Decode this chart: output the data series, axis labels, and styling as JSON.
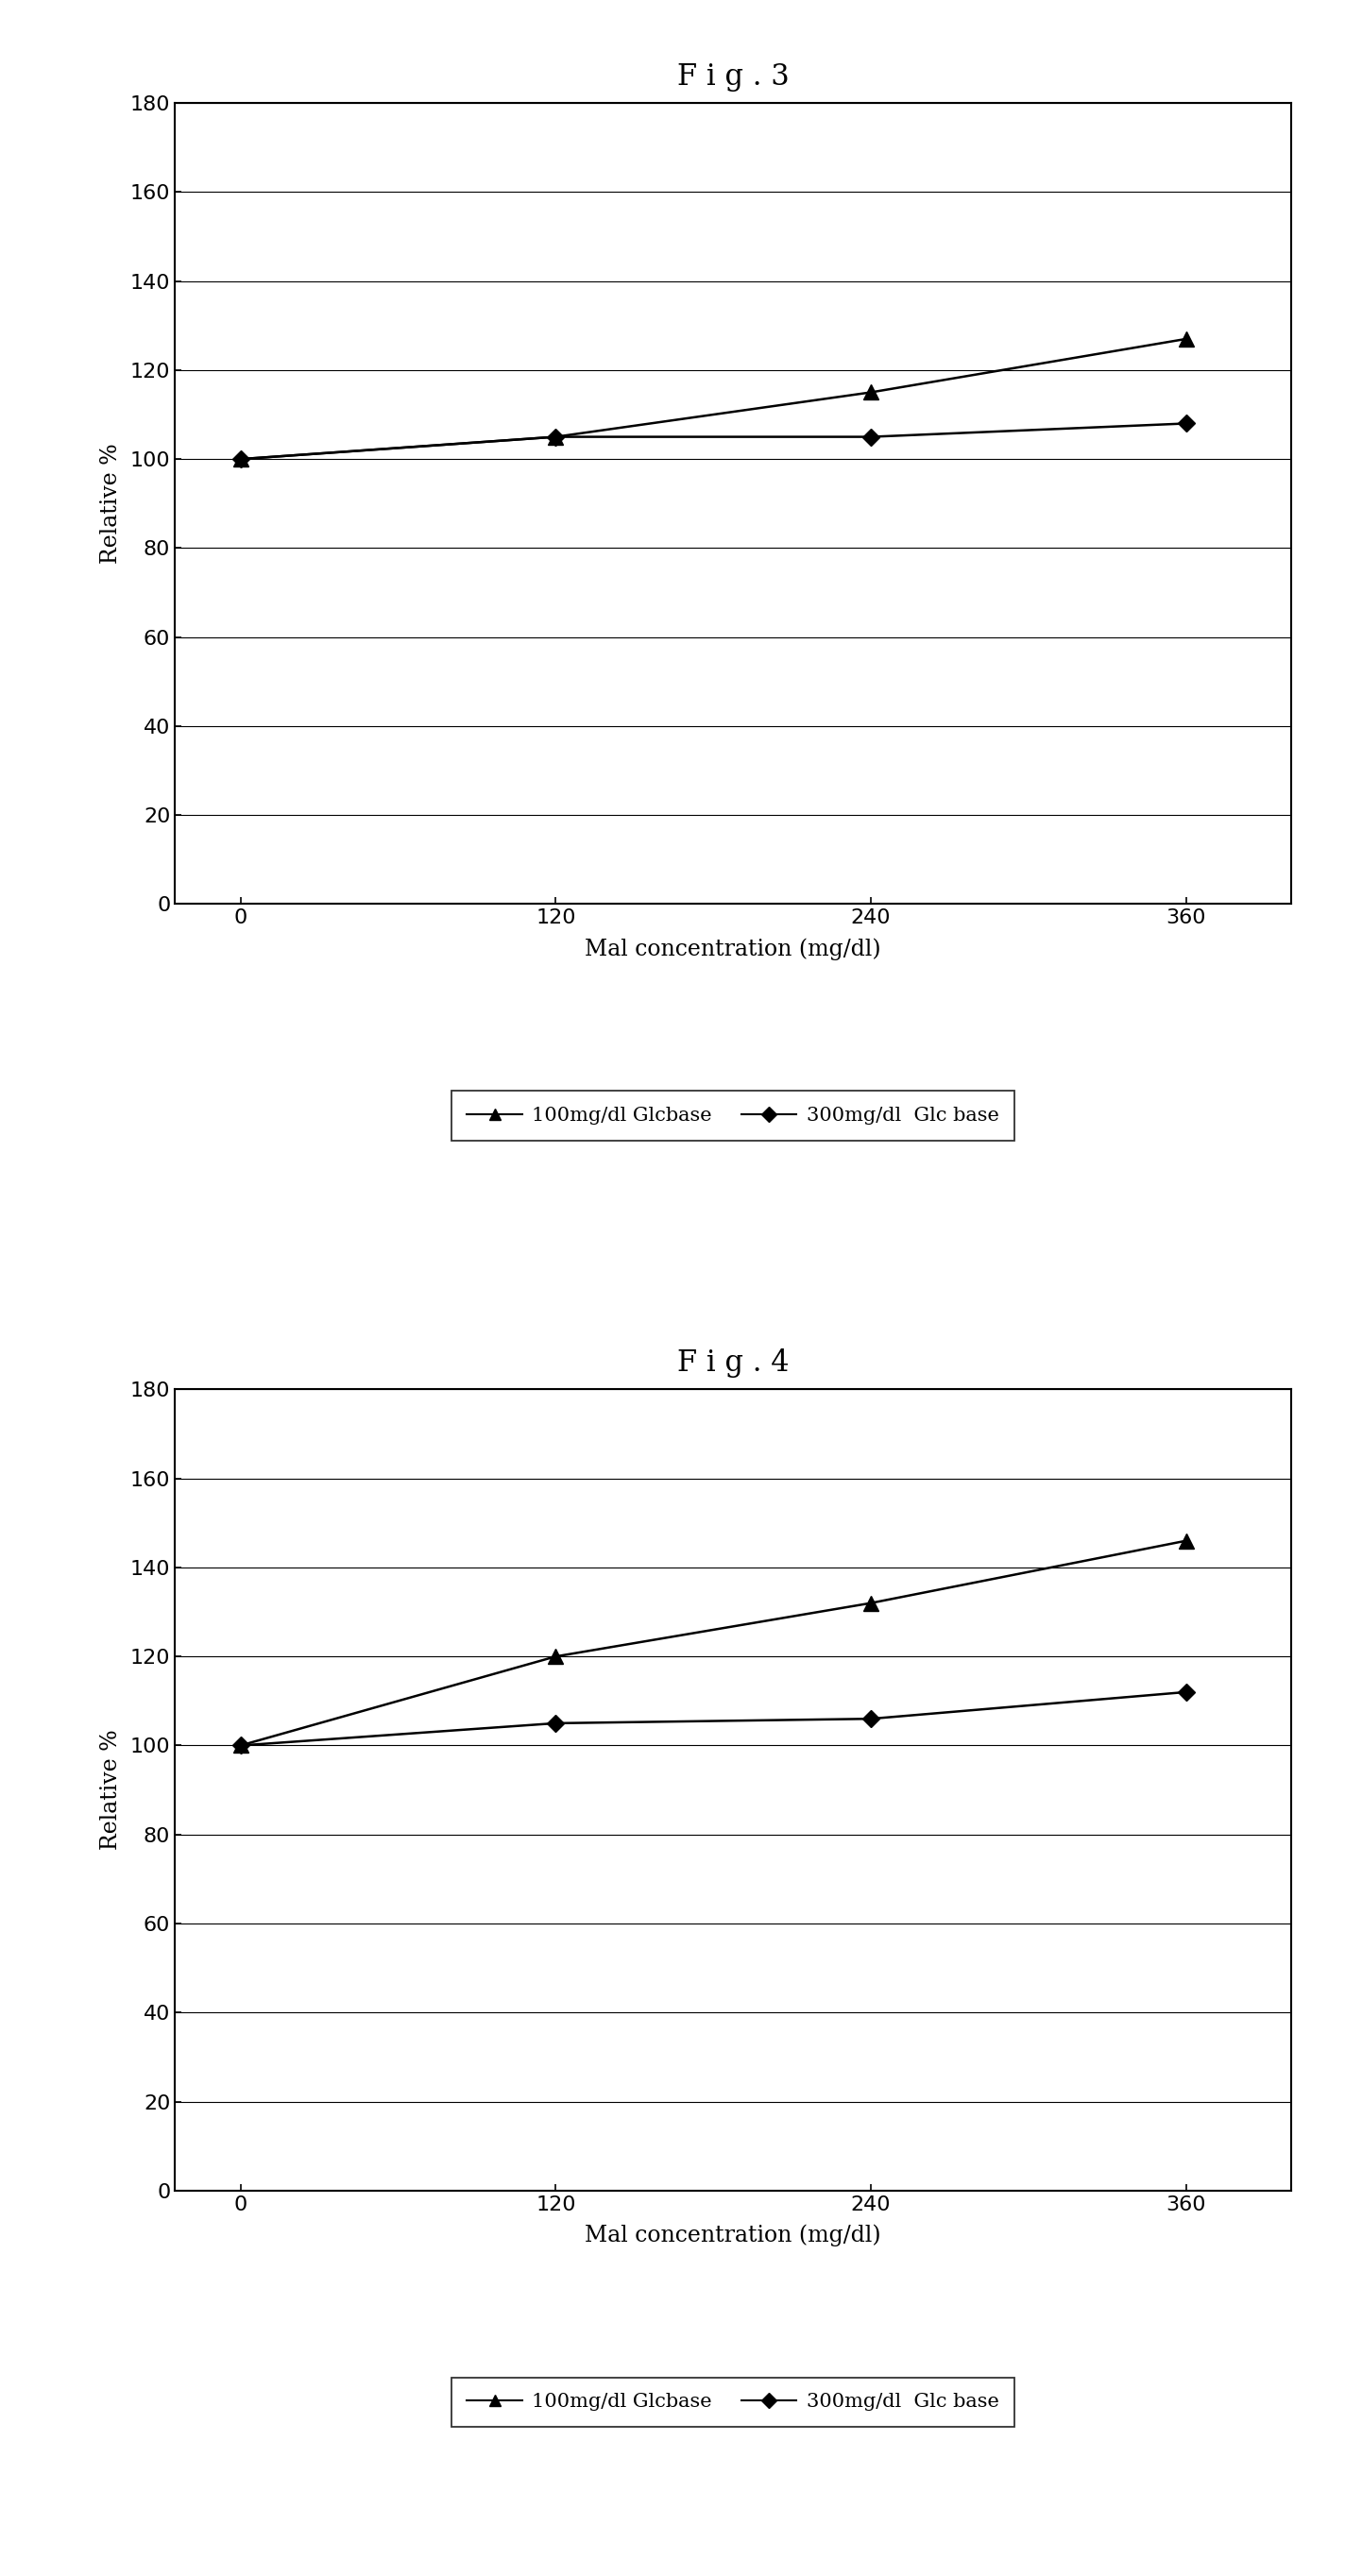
{
  "fig3_title": "F i g . 3",
  "fig4_title": "F i g . 4",
  "x_values": [
    0,
    120,
    240,
    360
  ],
  "xlabel": "Mal concentration (mg/dl)",
  "ylabel": "Relative %",
  "ylim": [
    0,
    180
  ],
  "yticks": [
    0,
    20,
    40,
    60,
    80,
    100,
    120,
    140,
    160,
    180
  ],
  "xticks": [
    0,
    120,
    240,
    360
  ],
  "fig3_series1_y": [
    100,
    105,
    115,
    127
  ],
  "fig3_series2_y": [
    100,
    105,
    105,
    108
  ],
  "fig4_series1_y": [
    100,
    120,
    132,
    146
  ],
  "fig4_series2_y": [
    100,
    105,
    106,
    112
  ],
  "series1_label": "100mg/dl Glcbase",
  "series2_label": "300mg/dl  Glc base",
  "series1_color": "#000000",
  "series2_color": "#000000",
  "background_color": "#ffffff",
  "title_fontsize": 22,
  "axis_label_fontsize": 17,
  "tick_fontsize": 16,
  "legend_fontsize": 15
}
